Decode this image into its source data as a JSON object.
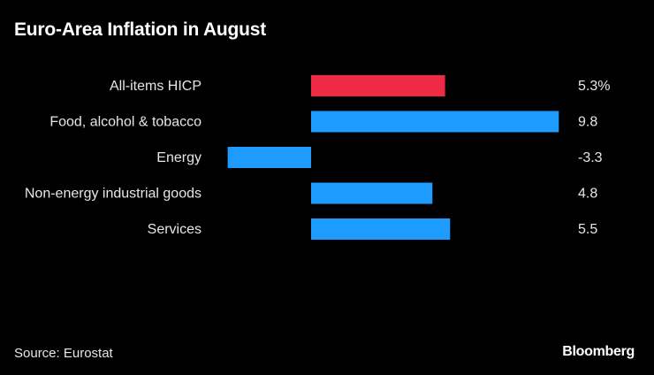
{
  "chart_data": {
    "type": "bar",
    "orientation": "horizontal",
    "title": "Euro-Area Inflation in August",
    "categories": [
      "All-items HICP",
      "Food, alcohol & tobacco",
      "Energy",
      "Non-energy industrial goods",
      "Services"
    ],
    "values": [
      5.3,
      9.8,
      -3.3,
      4.8,
      5.5
    ],
    "value_labels": [
      "5.3%",
      "9.8",
      "-3.3",
      "4.8",
      "5.5"
    ],
    "colors": [
      "#ee2a44",
      "#1e9bff",
      "#1e9bff",
      "#1e9bff",
      "#1e9bff"
    ],
    "xlabel": "",
    "ylabel": "",
    "grid": false,
    "legend": "none"
  },
  "footer": {
    "source": "Source: Eurostat",
    "brand": "Bloomberg"
  }
}
